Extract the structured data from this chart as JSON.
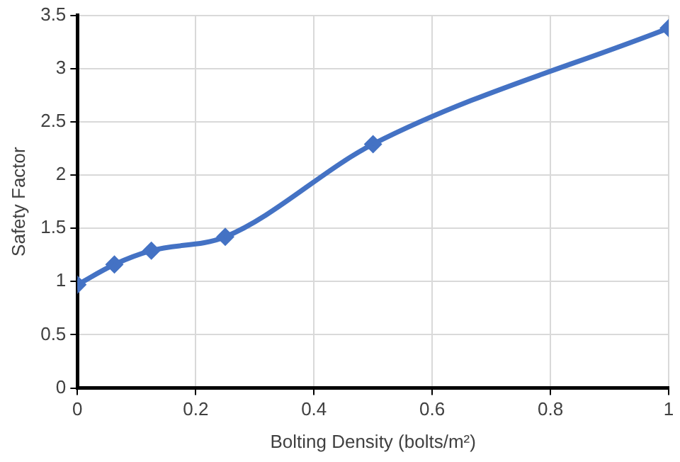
{
  "chart_data": {
    "type": "line",
    "xlabel": "Bolting Density (bolts/m²)",
    "ylabel": "Safety Factor",
    "x": [
      0,
      0.0625,
      0.125,
      0.25,
      0.5,
      1
    ],
    "series": [
      {
        "color": "#4472c4",
        "values": [
          0.97,
          1.16,
          1.29,
          1.42,
          2.29,
          3.38
        ]
      }
    ],
    "xlim": [
      0,
      1
    ],
    "xticks": [
      0,
      0.2,
      0.4,
      0.6,
      0.8,
      1
    ],
    "ylim": [
      0,
      3.5
    ],
    "yticks": [
      0,
      0.5,
      1,
      1.5,
      2,
      2.5,
      3,
      3.5
    ],
    "grid": true,
    "legend": false,
    "marker": "diamond",
    "line_style": "solid"
  }
}
